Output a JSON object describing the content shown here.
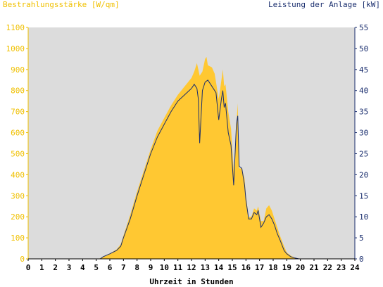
{
  "chart_data": {
    "type": "area",
    "title_left": "Bestrahlungsstärke [W/qm]",
    "title_right": "Leistung der Anlage [kW]",
    "xlabel": "Uhrzeit in Stunden",
    "x_range": [
      0,
      24
    ],
    "x_ticks": [
      "0",
      "1",
      "2",
      "3",
      "4",
      "5",
      "6",
      "7",
      "8",
      "9",
      "10",
      "11",
      "12",
      "13",
      "14",
      "15",
      "16",
      "17",
      "18",
      "19",
      "20",
      "21",
      "22",
      "23",
      "24"
    ],
    "y_left_range": [
      0,
      1100
    ],
    "y_left_ticks": [
      "0",
      "100",
      "200",
      "300",
      "400",
      "500",
      "600",
      "700",
      "800",
      "900",
      "1000",
      "1100"
    ],
    "y_right_range": [
      0,
      55
    ],
    "y_right_ticks": [
      "0",
      "5",
      "10",
      "15",
      "20",
      "25",
      "30",
      "35",
      "40",
      "45",
      "50",
      "55"
    ],
    "colors": {
      "irradiance": "#ffc832",
      "power": "#1a2e6e",
      "background": "#dcdcdc",
      "left_axis": "#f0c000",
      "right_axis": "#1a2e6e"
    },
    "series": [
      {
        "name": "Bestrahlungsstärke [W/qm]",
        "axis": "left",
        "points": [
          [
            0,
            0
          ],
          [
            5.2,
            0
          ],
          [
            5.5,
            10
          ],
          [
            6,
            25
          ],
          [
            6.5,
            45
          ],
          [
            6.8,
            70
          ],
          [
            7,
            110
          ],
          [
            7.5,
            210
          ],
          [
            8,
            320
          ],
          [
            8.5,
            420
          ],
          [
            9,
            520
          ],
          [
            9.5,
            610
          ],
          [
            10,
            670
          ],
          [
            10.5,
            730
          ],
          [
            11,
            780
          ],
          [
            11.5,
            820
          ],
          [
            12,
            860
          ],
          [
            12.2,
            890
          ],
          [
            12.4,
            930
          ],
          [
            12.5,
            900
          ],
          [
            12.6,
            870
          ],
          [
            12.8,
            890
          ],
          [
            13,
            950
          ],
          [
            13.1,
            960
          ],
          [
            13.2,
            920
          ],
          [
            13.5,
            910
          ],
          [
            13.7,
            880
          ],
          [
            14,
            760
          ],
          [
            14.2,
            850
          ],
          [
            14.3,
            900
          ],
          [
            14.4,
            820
          ],
          [
            14.5,
            830
          ],
          [
            14.7,
            700
          ],
          [
            14.9,
            620
          ],
          [
            15.1,
            420
          ],
          [
            15.3,
            640
          ],
          [
            15.4,
            740
          ],
          [
            15.5,
            430
          ],
          [
            15.7,
            430
          ],
          [
            15.9,
            380
          ],
          [
            16,
            300
          ],
          [
            16.2,
            200
          ],
          [
            16.4,
            200
          ],
          [
            16.6,
            240
          ],
          [
            16.8,
            230
          ],
          [
            16.9,
            250
          ],
          [
            17.1,
            180
          ],
          [
            17.3,
            180
          ],
          [
            17.5,
            240
          ],
          [
            17.7,
            255
          ],
          [
            17.9,
            230
          ],
          [
            18.1,
            190
          ],
          [
            18.3,
            150
          ],
          [
            18.5,
            110
          ],
          [
            18.8,
            60
          ],
          [
            19,
            30
          ],
          [
            19.3,
            15
          ],
          [
            19.6,
            5
          ],
          [
            19.9,
            0
          ],
          [
            24,
            0
          ]
        ]
      },
      {
        "name": "Leistung der Anlage [kW]",
        "axis": "right",
        "points": [
          [
            0,
            0
          ],
          [
            5.3,
            0
          ],
          [
            5.5,
            0.5
          ],
          [
            6,
            1.2
          ],
          [
            6.5,
            2
          ],
          [
            6.8,
            3
          ],
          [
            7,
            5
          ],
          [
            7.5,
            9.5
          ],
          [
            8,
            15
          ],
          [
            8.5,
            20
          ],
          [
            9,
            25
          ],
          [
            9.5,
            29
          ],
          [
            10,
            32
          ],
          [
            10.5,
            35
          ],
          [
            11,
            37.5
          ],
          [
            11.5,
            39
          ],
          [
            12,
            40.5
          ],
          [
            12.2,
            41.5
          ],
          [
            12.4,
            40.5
          ],
          [
            12.5,
            38
          ],
          [
            12.6,
            27.5
          ],
          [
            12.8,
            40
          ],
          [
            13,
            42
          ],
          [
            13.2,
            42.5
          ],
          [
            13.5,
            41
          ],
          [
            13.8,
            39.5
          ],
          [
            14,
            33
          ],
          [
            14.2,
            38
          ],
          [
            14.3,
            40
          ],
          [
            14.4,
            36
          ],
          [
            14.5,
            37
          ],
          [
            14.7,
            30
          ],
          [
            14.9,
            27
          ],
          [
            15.1,
            17.5
          ],
          [
            15.3,
            32
          ],
          [
            15.4,
            34
          ],
          [
            15.5,
            22
          ],
          [
            15.7,
            21.5
          ],
          [
            15.9,
            17.5
          ],
          [
            16,
            14
          ],
          [
            16.2,
            9.5
          ],
          [
            16.4,
            9.5
          ],
          [
            16.6,
            11
          ],
          [
            16.8,
            10.5
          ],
          [
            16.9,
            11.5
          ],
          [
            17.1,
            7.5
          ],
          [
            17.3,
            8.5
          ],
          [
            17.5,
            10
          ],
          [
            17.7,
            10.5
          ],
          [
            17.9,
            9.5
          ],
          [
            18.1,
            8
          ],
          [
            18.3,
            6
          ],
          [
            18.5,
            4.5
          ],
          [
            18.8,
            2
          ],
          [
            19,
            1.2
          ],
          [
            19.3,
            0.5
          ],
          [
            19.6,
            0.2
          ],
          [
            19.9,
            0
          ],
          [
            24,
            0
          ]
        ]
      }
    ]
  }
}
